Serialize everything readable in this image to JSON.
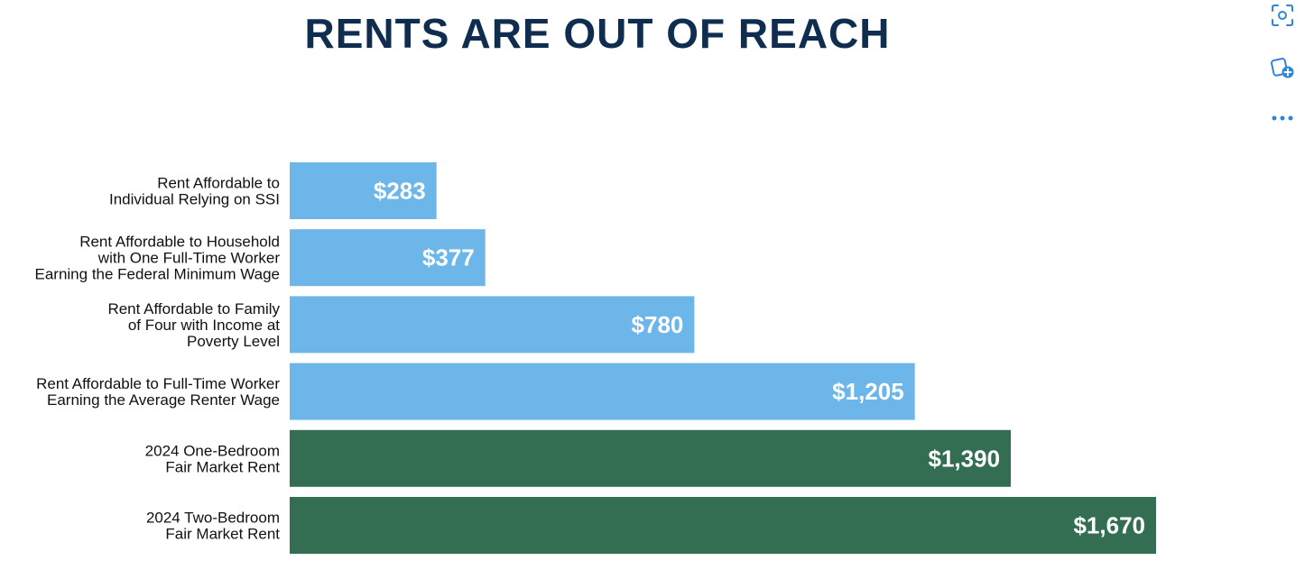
{
  "title": "RENTS ARE OUT OF REACH",
  "chart_data": {
    "type": "bar",
    "orientation": "horizontal",
    "title": "RENTS ARE OUT OF REACH",
    "categories": [
      [
        "Rent Affordable to",
        "Individual Relying on SSI"
      ],
      [
        "Rent Affordable to Household",
        "with One Full-Time Worker",
        "Earning the Federal Minimum Wage"
      ],
      [
        "Rent Affordable to Family",
        "of Four with Income at",
        "Poverty Level"
      ],
      [
        "Rent Affordable to Full-Time Worker",
        "Earning the Average Renter Wage"
      ],
      [
        "2024 One-Bedroom",
        "Fair Market Rent"
      ],
      [
        "2024 Two-Bedroom",
        "Fair Market Rent"
      ]
    ],
    "values": [
      283,
      377,
      780,
      1205,
      1390,
      1670
    ],
    "value_labels": [
      "$283",
      "$377",
      "$780",
      "$1,205",
      "$1,390",
      "$1,670"
    ],
    "bar_colors": [
      "#6db6ea",
      "#6db6ea",
      "#6db6ea",
      "#6db6ea",
      "#336e53",
      "#336e53"
    ],
    "xlim": [
      0,
      1670
    ],
    "grid": false,
    "legend": "none"
  },
  "colors": {
    "title": "#0f2d4e",
    "affordable": "#6db6ea",
    "fair_market": "#336e53",
    "toolbar_icon": "#2f86d9"
  },
  "toolbar": {
    "icons": [
      "scan-icon",
      "add-collection-icon",
      "more-options-icon"
    ]
  }
}
